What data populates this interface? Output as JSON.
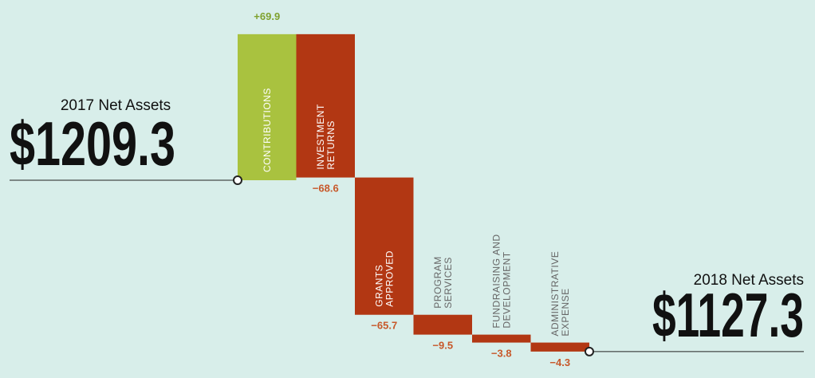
{
  "chart_data": {
    "type": "waterfall",
    "start": {
      "label": "2017 Net Assets",
      "value": 1209.3,
      "display": "$1209.3"
    },
    "end": {
      "label": "2018 Net Assets",
      "value": 1127.3,
      "display": "$1127.3"
    },
    "steps": [
      {
        "label_lines": [
          "CONTRIBUTIONS"
        ],
        "value": 69.9,
        "value_label": "+69.9"
      },
      {
        "label_lines": [
          "INVESTMENT",
          "RETURNS"
        ],
        "value": -68.6,
        "value_label": "−68.6"
      },
      {
        "label_lines": [
          "GRANTS",
          "APPROVED"
        ],
        "value": -65.7,
        "value_label": "−65.7"
      },
      {
        "label_lines": [
          "PROGRAM",
          "SERVICES"
        ],
        "value": -9.5,
        "value_label": "−9.5"
      },
      {
        "label_lines": [
          "FUNDRAISING AND",
          "DEVELOPMENT"
        ],
        "value": -3.8,
        "value_label": "−3.8"
      },
      {
        "label_lines": [
          "ADMINISTRATIVE",
          "EXPENSE"
        ],
        "value": -4.3,
        "value_label": "−4.3"
      }
    ],
    "colors": {
      "positive": "#a9c23f",
      "negative": "#b23713",
      "positive_label": "#7fa12e",
      "negative_label": "#c7582a",
      "axis": "#222222",
      "text": "#111111",
      "bar_label_on_bar": "#ffffff",
      "bar_label_off_bar": "#666666"
    }
  }
}
